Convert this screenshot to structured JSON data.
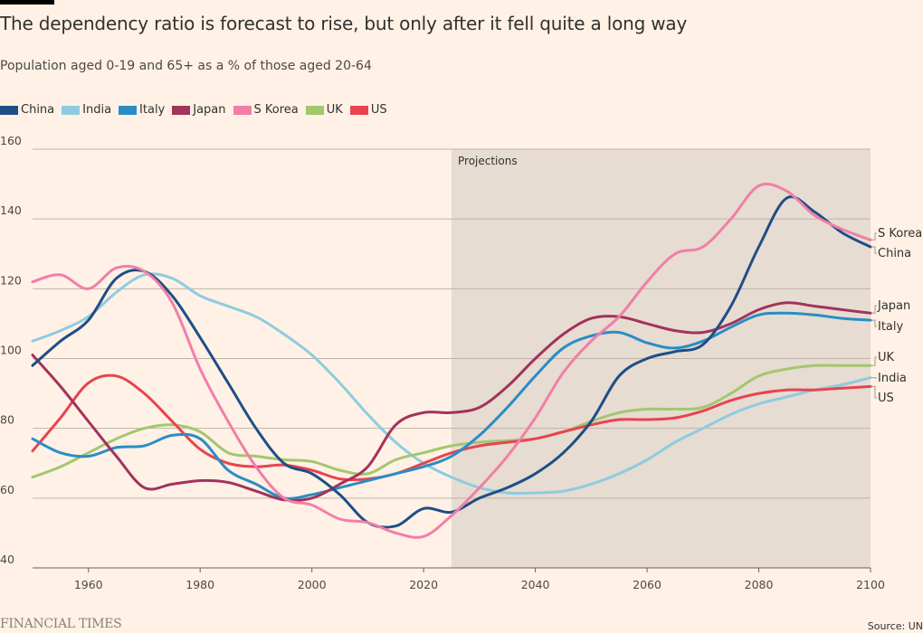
{
  "header": {
    "title": "The dependency ratio is forecast to rise, but only after it fell quite a long way",
    "subtitle": "Population aged 0-19 and 65+ as a % of those aged 20-64"
  },
  "footer": {
    "brand": "FINANCIAL TIMES",
    "source": "Source: UN"
  },
  "chart_data": {
    "type": "line",
    "title": "The dependency ratio is forecast to rise, but only after it fell quite a long way",
    "subtitle": "Population aged 0-19 and 65+ as a % of those aged 20-64",
    "xlabel": "",
    "ylabel": "",
    "xlim": [
      1950,
      2100
    ],
    "ylim": [
      40,
      160
    ],
    "x_ticks": [
      1960,
      1980,
      2000,
      2020,
      2040,
      2060,
      2080,
      2100
    ],
    "y_ticks": [
      40,
      60,
      80,
      100,
      120,
      140,
      160
    ],
    "grid": true,
    "legend": "top-left",
    "annotation": {
      "label": "Projections",
      "x_start": 2025,
      "x_end": 2100
    },
    "x": [
      1950,
      1955,
      1960,
      1965,
      1970,
      1975,
      1980,
      1985,
      1990,
      1995,
      2000,
      2005,
      2010,
      2015,
      2020,
      2025,
      2030,
      2035,
      2040,
      2045,
      2050,
      2055,
      2060,
      2065,
      2070,
      2075,
      2080,
      2085,
      2090,
      2095,
      2100
    ],
    "series": [
      {
        "name": "China",
        "color": "#1f4e85",
        "end_label": "China",
        "values": [
          98,
          105,
          111,
          123,
          125,
          118,
          106,
          93,
          80,
          70,
          67,
          61,
          53,
          52,
          57,
          56,
          60,
          63,
          67,
          73,
          82,
          95,
          100,
          102,
          104,
          115,
          132,
          146,
          142,
          136,
          132
        ]
      },
      {
        "name": "India",
        "color": "#8fcbe0",
        "end_label": "India",
        "values": [
          105,
          108,
          112,
          119,
          124,
          123,
          118,
          115,
          112,
          107,
          101,
          93,
          84,
          76,
          70,
          66,
          63,
          61.5,
          61.5,
          62,
          64,
          67,
          71,
          76,
          80,
          84,
          87,
          89,
          91,
          92.5,
          94.5
        ]
      },
      {
        "name": "Italy",
        "color": "#2a8dc5",
        "end_label": "Italy",
        "values": [
          77,
          73,
          72,
          74.5,
          75,
          78,
          77,
          68,
          64,
          60,
          61,
          63,
          65,
          67,
          69,
          72,
          78,
          86,
          95,
          103,
          106.5,
          107.5,
          104.5,
          103,
          105,
          109,
          112.5,
          113,
          112.5,
          111.5,
          111
        ]
      },
      {
        "name": "Japan",
        "color": "#a3325c",
        "end_label": "Japan",
        "values": [
          101,
          92,
          82,
          72,
          63,
          64,
          65,
          64.5,
          62,
          59.5,
          60,
          64,
          69,
          81,
          84.5,
          84.5,
          86,
          92,
          100,
          107,
          111.5,
          112,
          110,
          108,
          107.5,
          110,
          114,
          116,
          115,
          114,
          113
        ]
      },
      {
        "name": "S Korea",
        "color": "#f27ea8",
        "end_label": "S Korea",
        "values": [
          122,
          124,
          120,
          126,
          125,
          116,
          97,
          82,
          69,
          60,
          58,
          54,
          53,
          50,
          49,
          55,
          63,
          72,
          83,
          96,
          105,
          112,
          122,
          130,
          132,
          140,
          149.5,
          148,
          141,
          137,
          134
        ]
      },
      {
        "name": "UK",
        "color": "#a3c76e",
        "end_label": "UK",
        "values": [
          66,
          69,
          73,
          77,
          80,
          81,
          79,
          73,
          72,
          71,
          70.5,
          68,
          67,
          71,
          73,
          75,
          76,
          76.5,
          77,
          79,
          82,
          84.5,
          85.5,
          85.5,
          86,
          90,
          95,
          97,
          98,
          98,
          98
        ]
      },
      {
        "name": "US",
        "color": "#e9434f",
        "end_label": "US",
        "values": [
          73.5,
          83,
          93,
          95,
          90,
          82,
          74,
          70,
          69,
          69.5,
          68,
          65.5,
          65.5,
          67,
          70,
          73,
          75,
          76,
          77,
          79,
          81,
          82.5,
          82.5,
          83,
          85,
          88,
          90,
          91,
          91,
          91.5,
          92
        ]
      }
    ]
  }
}
